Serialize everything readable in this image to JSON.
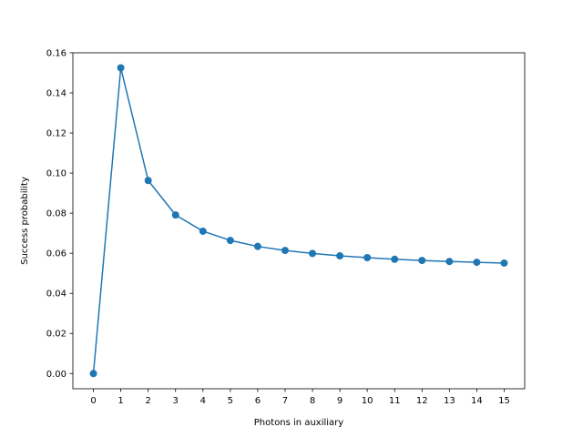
{
  "chart_data": {
    "type": "line",
    "title": "",
    "xlabel": "Photons in auxiliary",
    "ylabel": "Success probability",
    "x": [
      0,
      1,
      2,
      3,
      4,
      5,
      6,
      7,
      8,
      9,
      10,
      11,
      12,
      13,
      14,
      15
    ],
    "series": [
      {
        "values": [
          0.0,
          0.1525,
          0.0963,
          0.0791,
          0.071,
          0.0664,
          0.0634,
          0.0614,
          0.0599,
          0.0587,
          0.0578,
          0.057,
          0.0564,
          0.0559,
          0.0555,
          0.0551
        ],
        "color": "#1f77b4",
        "marker": "circle"
      }
    ],
    "xticks": [
      "0",
      "1",
      "2",
      "3",
      "4",
      "5",
      "6",
      "7",
      "8",
      "9",
      "10",
      "11",
      "12",
      "13",
      "14",
      "15"
    ],
    "yticks": [
      "0.00",
      "0.02",
      "0.04",
      "0.06",
      "0.08",
      "0.10",
      "0.12",
      "0.14",
      "0.16"
    ],
    "ytick_values": [
      0.0,
      0.02,
      0.04,
      0.06,
      0.08,
      0.1,
      0.12,
      0.14,
      0.16
    ],
    "xlim": [
      -0.75,
      15.75
    ],
    "ylim": [
      -0.0076,
      0.16
    ],
    "grid": false,
    "legend": false
  }
}
